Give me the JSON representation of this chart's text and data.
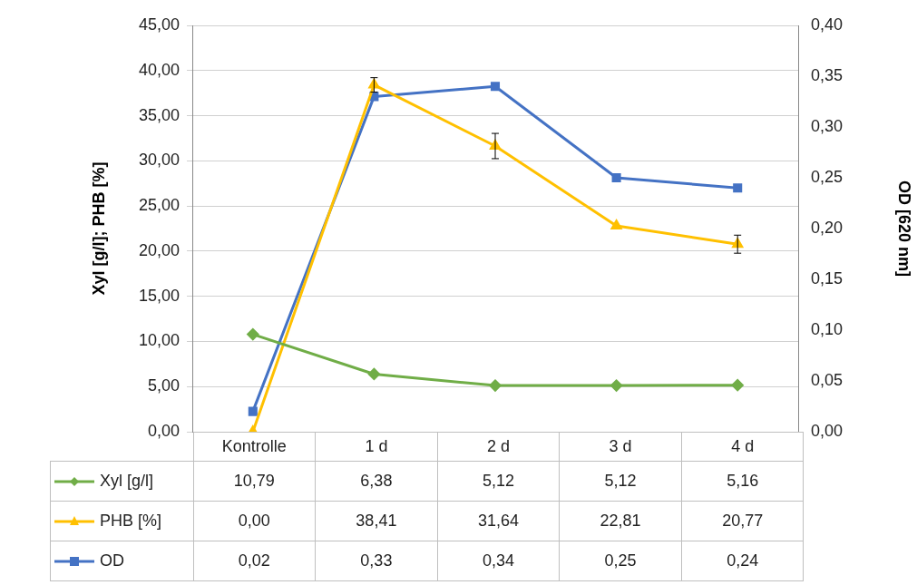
{
  "chart_data": {
    "type": "line",
    "ylabel": "Xyl [g/l]; PHB [%]",
    "y2label": "OD [620 nm]",
    "categories": [
      "Kontrolle",
      "1 d",
      "2 d",
      "3 d",
      "4 d"
    ],
    "series": [
      {
        "name": "Xyl [g/l]",
        "color": "#70ad47",
        "marker": "diamond",
        "values": [
          10.79,
          6.38,
          5.12,
          5.12,
          5.16
        ],
        "value_labels": [
          "10,79",
          "6,38",
          "5,12",
          "5,12",
          "5,16"
        ]
      },
      {
        "name": "PHB [%]",
        "color": "#ffc000",
        "marker": "triangle",
        "values": [
          0,
          38.41,
          31.64,
          22.81,
          20.77
        ],
        "value_labels": [
          "0,00",
          "38,41",
          "31,64",
          "22,81",
          "20,77"
        ],
        "errors": [
          null,
          0.8,
          1.4,
          null,
          1.0
        ]
      },
      {
        "name": "OD",
        "color": "#4472c4",
        "marker": "square",
        "axis": "y2",
        "values": [
          0.02,
          0.33,
          0.34,
          0.25,
          0.24
        ],
        "value_labels": [
          "0,02",
          "0,33",
          "0,34",
          "0,25",
          "0,24"
        ]
      }
    ],
    "ylim": [
      0,
      45
    ],
    "yticks": [
      {
        "value": 0,
        "label": "0,00"
      },
      {
        "value": 5,
        "label": "5,00"
      },
      {
        "value": 10,
        "label": "10,00"
      },
      {
        "value": 15,
        "label": "15,00"
      },
      {
        "value": 20,
        "label": "20,00"
      },
      {
        "value": 25,
        "label": "25,00"
      },
      {
        "value": 30,
        "label": "30,00"
      },
      {
        "value": 35,
        "label": "35,00"
      },
      {
        "value": 40,
        "label": "40,00"
      },
      {
        "value": 45,
        "label": "45,00"
      }
    ],
    "y2lim": [
      0,
      0.4
    ],
    "y2ticks": [
      {
        "value": 0,
        "label": "0,00"
      },
      {
        "value": 0.05,
        "label": "0,05"
      },
      {
        "value": 0.1,
        "label": "0,10"
      },
      {
        "value": 0.15,
        "label": "0,15"
      },
      {
        "value": 0.2,
        "label": "0,20"
      },
      {
        "value": 0.25,
        "label": "0,25"
      },
      {
        "value": 0.3,
        "label": "0,30"
      },
      {
        "value": 0.35,
        "label": "0,35"
      },
      {
        "value": 0.4,
        "label": "0,40"
      }
    ],
    "grid": "y",
    "legend": "bottom",
    "line_style": "solid"
  }
}
